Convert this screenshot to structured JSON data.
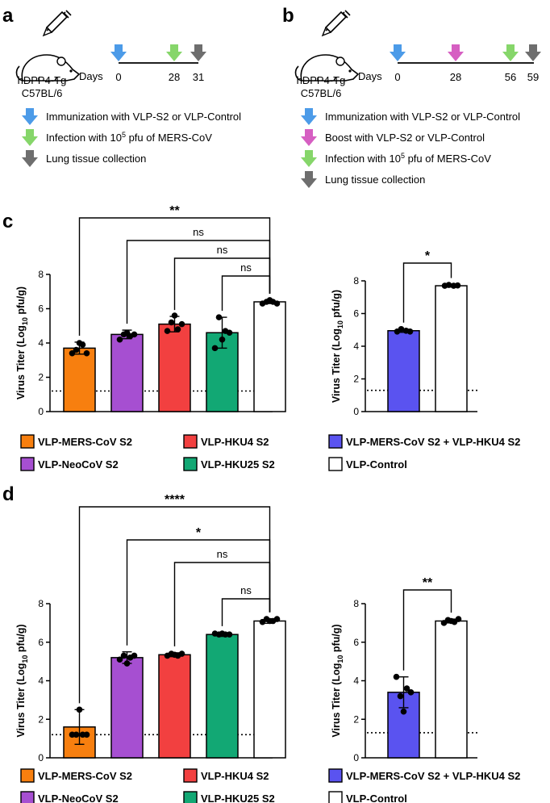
{
  "colors": {
    "mers": "#f77f0f",
    "neo": "#a64fd1",
    "hku4": "#f24040",
    "hku25": "#12a874",
    "control": "#ffffff",
    "combo": "#5a53f0",
    "blue_arrow": "#4c9be8",
    "green_arrow": "#86d66a",
    "grey_arrow": "#6e6e6e",
    "pink_arrow": "#d65fc2"
  },
  "panel_a": {
    "label": "a",
    "mouse_line1": "hDPP4-Tg",
    "mouse_line2": "C57BL/6",
    "days_label": "Days",
    "days": [
      "0",
      "28",
      "31"
    ],
    "legend": [
      {
        "icon": "blue-arrow",
        "text": "Immunization with VLP-S2 or VLP-Control"
      },
      {
        "icon": "green-arrow",
        "text_pre": "Infection with 10",
        "sup": "5",
        "text_post": " pfu of MERS-CoV"
      },
      {
        "icon": "grey-arrow",
        "text": "Lung tissue collection"
      }
    ]
  },
  "panel_b": {
    "label": "b",
    "mouse_line1": "hDPP4-Tg",
    "mouse_line2": "C57BL/6",
    "days_label": "Days",
    "days": [
      "0",
      "28",
      "56",
      "59"
    ],
    "legend": [
      {
        "icon": "blue-arrow",
        "text": "Immunization with VLP-S2 or VLP-Control"
      },
      {
        "icon": "pink-arrow",
        "text": "Boost with VLP-S2 or VLP-Control"
      },
      {
        "icon": "green-arrow",
        "text_pre": "Infection with 10",
        "sup": "5",
        "text_post": " pfu of MERS-CoV"
      },
      {
        "icon": "grey-arrow",
        "text": "Lung tissue collection"
      }
    ]
  },
  "panel_c_label": "c",
  "panel_d_label": "d",
  "legend_items": {
    "mers": "VLP-MERS-CoV S2",
    "hku4": "VLP-HKU4 S2",
    "neo": "VLP-NeoCoV S2",
    "hku25": "VLP-HKU25 S2",
    "combo": "VLP-MERS-CoV S2 + VLP-HKU4 S2",
    "control": "VLP-Control"
  },
  "ylabel_main": "Virus Titer (Log",
  "ylabel_sub": "10",
  "ylabel_end": " pfu/g)",
  "chart_data": [
    {
      "id": "c_left",
      "type": "bar",
      "ylim": [
        0,
        8
      ],
      "yticks": [
        0,
        2,
        4,
        6,
        8
      ],
      "detection_limit": 1.2,
      "categories": [
        "VLP-MERS-CoV S2",
        "VLP-NeoCoV S2",
        "VLP-HKU4 S2",
        "VLP-HKU25 S2",
        "VLP-Control"
      ],
      "values": [
        3.7,
        4.5,
        5.1,
        4.6,
        6.4
      ],
      "errors": [
        0.35,
        0.25,
        0.45,
        0.9,
        0.1
      ],
      "points": [
        [
          3.4,
          3.6,
          4.0,
          3.9,
          3.4
        ],
        [
          4.2,
          4.5,
          4.6,
          4.4,
          4.5
        ],
        [
          4.7,
          5.2,
          5.6,
          4.8,
          5.1
        ],
        [
          3.7,
          5.5,
          4.2,
          4.7,
          4.6
        ],
        [
          6.3,
          6.4,
          6.5,
          6.4,
          6.3
        ]
      ],
      "comparisons": [
        {
          "from": 0,
          "to": 4,
          "label": "**"
        },
        {
          "from": 1,
          "to": 4,
          "label": "ns"
        },
        {
          "from": 2,
          "to": 4,
          "label": "ns"
        },
        {
          "from": 3,
          "to": 4,
          "label": "ns"
        }
      ]
    },
    {
      "id": "c_right",
      "type": "bar",
      "ylim": [
        0,
        8
      ],
      "yticks": [
        0,
        2,
        4,
        6,
        8
      ],
      "detection_limit": 1.3,
      "categories": [
        "VLP-MERS-CoV S2 + VLP-HKU4 S2",
        "VLP-Control"
      ],
      "values": [
        4.95,
        7.7
      ],
      "errors": [
        0.1,
        0.08
      ],
      "points": [
        [
          4.9,
          5.05,
          4.95,
          4.9
        ],
        [
          7.7,
          7.75,
          7.7,
          7.72
        ]
      ],
      "comparisons": [
        {
          "from": 0,
          "to": 1,
          "label": "*"
        }
      ]
    },
    {
      "id": "d_left",
      "type": "bar",
      "ylim": [
        0,
        8
      ],
      "yticks": [
        0,
        2,
        4,
        6,
        8
      ],
      "detection_limit": 1.2,
      "categories": [
        "VLP-MERS-CoV S2",
        "VLP-NeoCoV S2",
        "VLP-HKU4 S2",
        "VLP-HKU25 S2",
        "VLP-Control"
      ],
      "values": [
        1.6,
        5.2,
        5.35,
        6.4,
        7.1
      ],
      "errors": [
        0.9,
        0.3,
        0.1,
        0.1,
        0.12
      ],
      "points": [
        [
          1.2,
          1.2,
          2.5,
          1.2,
          1.2
        ],
        [
          5.1,
          5.3,
          4.9,
          5.2,
          5.3
        ],
        [
          5.3,
          5.4,
          5.35,
          5.3,
          5.4
        ],
        [
          6.45,
          6.4,
          6.45,
          6.4,
          6.4
        ],
        [
          7.05,
          7.2,
          7.1,
          7.1,
          7.2
        ]
      ],
      "comparisons": [
        {
          "from": 0,
          "to": 4,
          "label": "****"
        },
        {
          "from": 1,
          "to": 4,
          "label": "*"
        },
        {
          "from": 2,
          "to": 4,
          "label": "ns"
        },
        {
          "from": 3,
          "to": 4,
          "label": "ns"
        }
      ]
    },
    {
      "id": "d_right",
      "type": "bar",
      "ylim": [
        0,
        8
      ],
      "yticks": [
        0,
        2,
        4,
        6,
        8
      ],
      "detection_limit": 1.3,
      "categories": [
        "VLP-MERS-CoV S2 + VLP-HKU4 S2",
        "VLP-Control"
      ],
      "values": [
        3.4,
        7.1
      ],
      "errors": [
        0.8,
        0.1
      ],
      "points": [
        [
          4.2,
          3.2,
          2.4,
          3.6,
          3.4
        ],
        [
          7.0,
          7.15,
          7.1,
          7.05,
          7.2
        ]
      ],
      "comparisons": [
        {
          "from": 0,
          "to": 1,
          "label": "**"
        }
      ]
    }
  ]
}
